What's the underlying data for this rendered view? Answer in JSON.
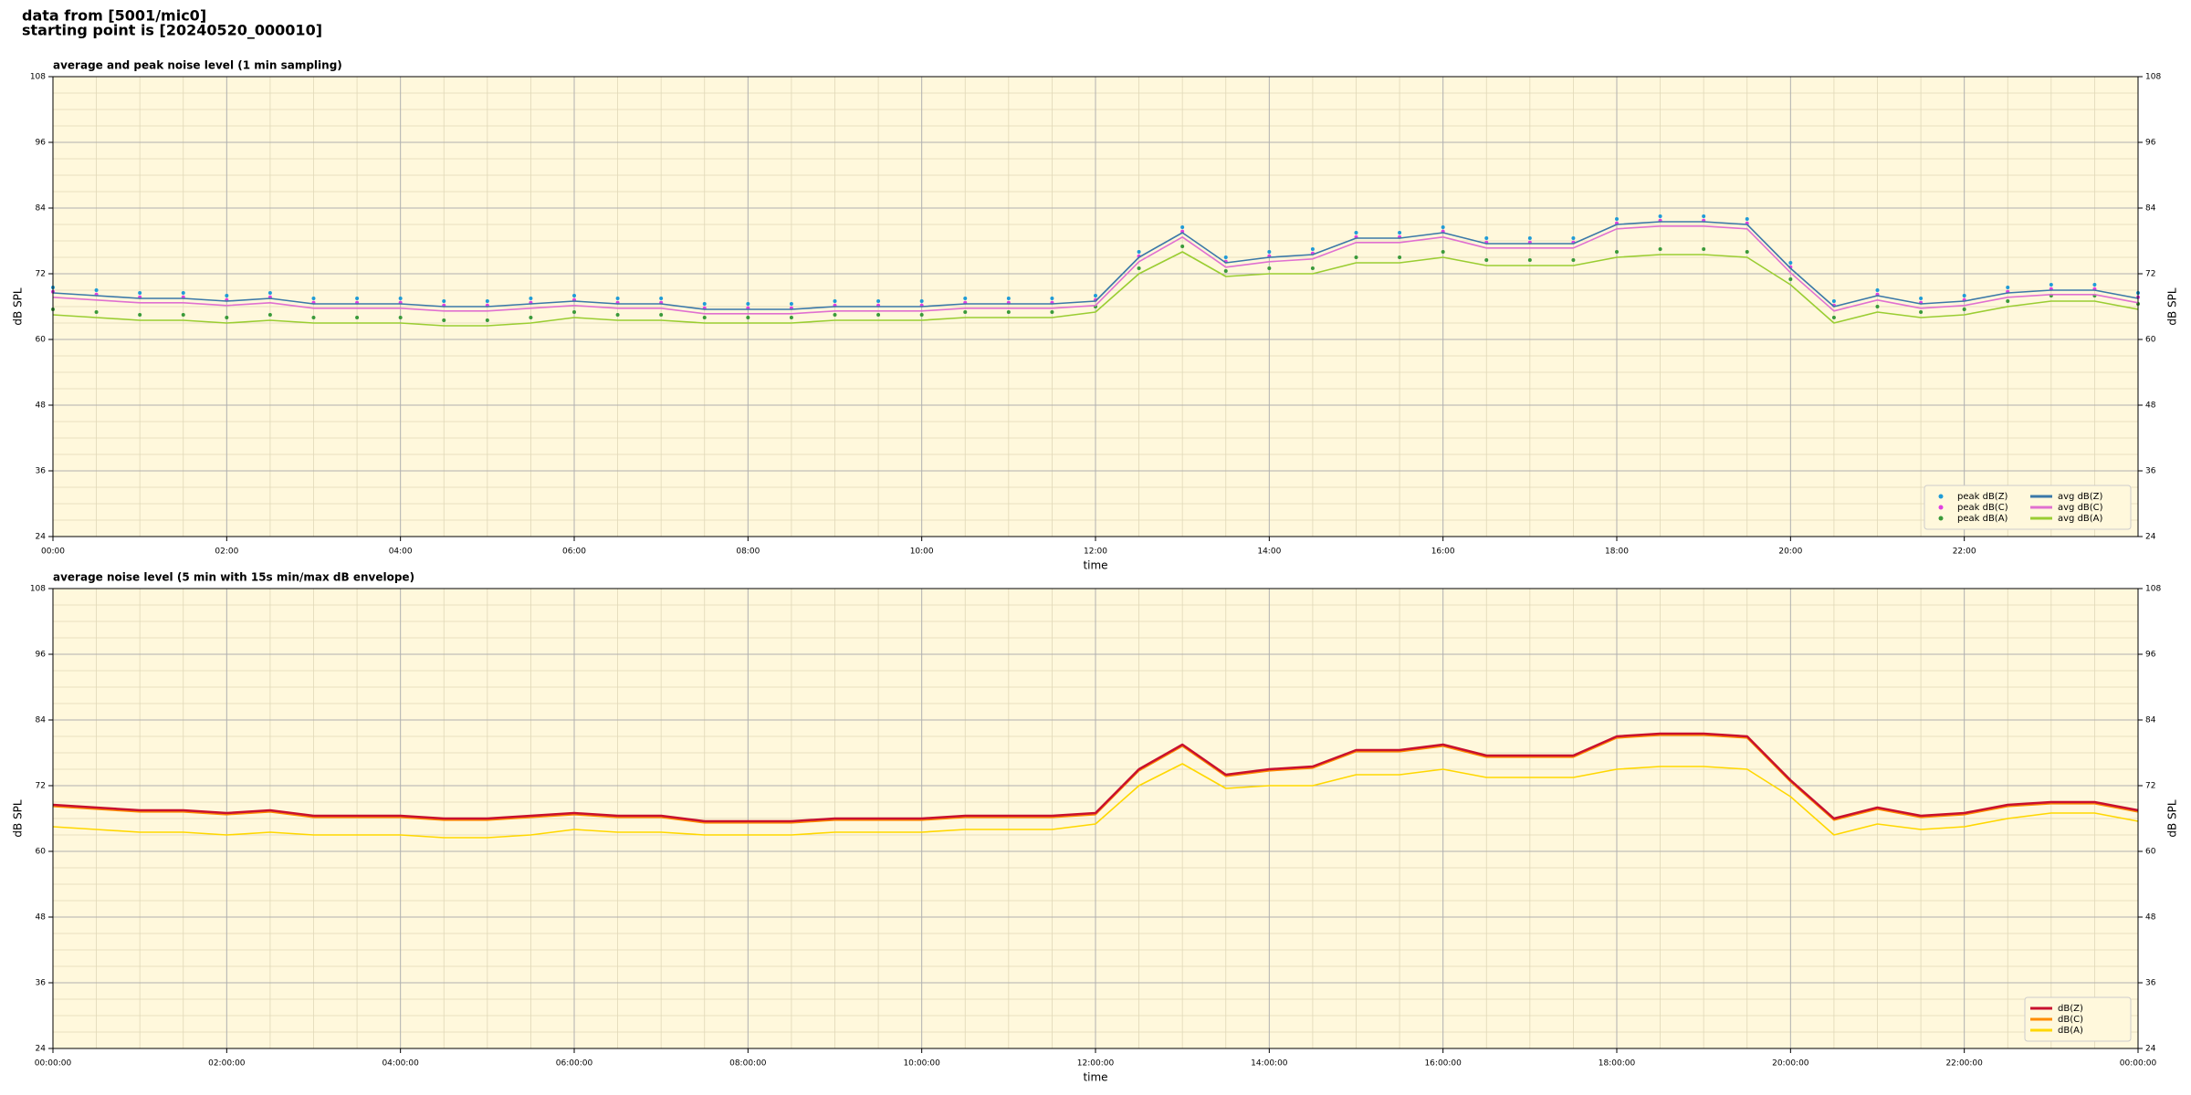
{
  "header": [
    "data from [5001/mic0]",
    "starting point is [20240520_000010]"
  ],
  "chart_data": [
    {
      "type": "line",
      "title": "average and peak noise level (1 min sampling)",
      "xlabel": "time",
      "ylabel": "dB SPL",
      "xlim": [
        0,
        24
      ],
      "ylim": [
        24,
        108
      ],
      "grid": true,
      "legend": "lower right",
      "legend_columns": 2,
      "background": "#fff8dc",
      "xticks": [
        {
          "value": 0,
          "label": "00:00"
        },
        {
          "value": 2,
          "label": "02:00"
        },
        {
          "value": 4,
          "label": "04:00"
        },
        {
          "value": 6,
          "label": "06:00"
        },
        {
          "value": 8,
          "label": "08:00"
        },
        {
          "value": 10,
          "label": "10:00"
        },
        {
          "value": 12,
          "label": "12:00"
        },
        {
          "value": 14,
          "label": "14:00"
        },
        {
          "value": 16,
          "label": "16:00"
        },
        {
          "value": 18,
          "label": "18:00"
        },
        {
          "value": 20,
          "label": "20:00"
        },
        {
          "value": 22,
          "label": "22:00"
        }
      ],
      "yticks": [
        24,
        36,
        48,
        60,
        72,
        84,
        96,
        108
      ],
      "x": [
        0,
        0.5,
        1,
        1.5,
        2,
        2.5,
        3,
        3.5,
        4,
        4.5,
        5,
        5.5,
        6,
        6.5,
        7,
        7.5,
        8,
        8.5,
        9,
        9.5,
        10,
        10.5,
        11,
        11.5,
        12,
        12.5,
        13,
        13.5,
        14,
        14.5,
        15,
        15.5,
        16,
        16.5,
        17,
        17.5,
        18,
        18.5,
        19,
        19.5,
        20,
        20.5,
        21,
        21.5,
        22,
        22.5,
        23,
        23.5,
        24
      ],
      "series": [
        {
          "name": "peak dB(Z)",
          "mark": "point",
          "color": "#1f9bd7",
          "values": [
            69.5,
            69,
            68.5,
            68.5,
            68,
            68.5,
            67.5,
            67.5,
            67.5,
            67,
            67,
            67.5,
            68,
            67.5,
            67.5,
            66.5,
            66.5,
            66.5,
            67,
            67,
            67,
            67.5,
            67.5,
            67.5,
            68,
            76,
            80.5,
            75,
            76,
            76.5,
            79.5,
            79.5,
            80.5,
            78.5,
            78.5,
            78.5,
            82,
            82.5,
            82.5,
            82,
            74,
            67,
            69,
            67.5,
            68,
            69.5,
            70,
            70,
            68.5
          ]
        },
        {
          "name": "peak dB(C)",
          "mark": "point",
          "color": "#e040e0",
          "values": [
            68.7,
            68.2,
            67.7,
            67.7,
            67.2,
            67.7,
            66.7,
            66.7,
            66.7,
            66.2,
            66.2,
            66.7,
            67.2,
            66.7,
            66.7,
            65.7,
            65.7,
            65.7,
            66.2,
            66.2,
            66.2,
            66.7,
            66.7,
            66.7,
            67.2,
            75.2,
            79.7,
            74.2,
            75.2,
            75.7,
            78.7,
            78.7,
            79.7,
            77.7,
            77.7,
            77.7,
            81.2,
            81.7,
            81.7,
            81.2,
            73.2,
            66.2,
            68.2,
            66.7,
            67.2,
            68.7,
            69.2,
            69.2,
            67.7
          ]
        },
        {
          "name": "peak dB(A)",
          "mark": "point",
          "color": "#3a9a3a",
          "values": [
            65.5,
            65,
            64.5,
            64.5,
            64,
            64.5,
            64,
            64,
            64,
            63.5,
            63.5,
            64,
            65,
            64.5,
            64.5,
            64,
            64,
            64,
            64.5,
            64.5,
            64.5,
            65,
            65,
            65,
            66,
            73,
            77,
            72.5,
            73,
            73,
            75,
            75,
            76,
            74.5,
            74.5,
            74.5,
            76,
            76.5,
            76.5,
            76,
            71,
            64,
            66,
            65,
            65.5,
            67,
            68,
            68,
            66.5
          ]
        },
        {
          "name": "avg dB(Z)",
          "mark": "line",
          "color": "#3a78a8",
          "values": [
            68.5,
            68,
            67.5,
            67.5,
            67,
            67.5,
            66.5,
            66.5,
            66.5,
            66,
            66,
            66.5,
            67,
            66.5,
            66.5,
            65.5,
            65.5,
            65.5,
            66,
            66,
            66,
            66.5,
            66.5,
            66.5,
            67,
            75,
            79.5,
            74,
            75,
            75.5,
            78.5,
            78.5,
            79.5,
            77.5,
            77.5,
            77.5,
            81,
            81.5,
            81.5,
            81,
            73,
            66,
            68,
            66.5,
            67,
            68.5,
            69,
            69,
            67.5
          ]
        },
        {
          "name": "avg dB(C)",
          "mark": "line",
          "color": "#e070d0",
          "values": [
            67.7,
            67.2,
            66.7,
            66.7,
            66.2,
            66.7,
            65.7,
            65.7,
            65.7,
            65.2,
            65.2,
            65.7,
            66.2,
            65.7,
            65.7,
            64.7,
            64.7,
            64.7,
            65.2,
            65.2,
            65.2,
            65.7,
            65.7,
            65.7,
            66.2,
            74.2,
            78.7,
            73.2,
            74.2,
            74.7,
            77.7,
            77.7,
            78.7,
            76.7,
            76.7,
            76.7,
            80.2,
            80.7,
            80.7,
            80.2,
            72.2,
            65.2,
            67.2,
            65.7,
            66.2,
            67.7,
            68.2,
            68.2,
            66.7
          ]
        },
        {
          "name": "avg dB(A)",
          "mark": "line",
          "color": "#9acd32",
          "values": [
            64.5,
            64,
            63.5,
            63.5,
            63,
            63.5,
            63,
            63,
            63,
            62.5,
            62.5,
            63,
            64,
            63.5,
            63.5,
            63,
            63,
            63,
            63.5,
            63.5,
            63.5,
            64,
            64,
            64,
            65,
            72,
            76,
            71.5,
            72,
            72,
            74,
            74,
            75,
            73.5,
            73.5,
            73.5,
            75,
            75.5,
            75.5,
            75,
            70,
            63,
            65,
            64,
            64.5,
            66,
            67,
            67,
            65.5
          ]
        }
      ]
    },
    {
      "type": "line",
      "title": "average noise level (5 min with 15s min/max dB envelope)",
      "xlabel": "time",
      "ylabel": "dB SPL",
      "xlim": [
        0,
        24
      ],
      "ylim": [
        24,
        108
      ],
      "grid": true,
      "legend": "lower right",
      "legend_columns": 1,
      "background": "#fff8dc",
      "xticks": [
        {
          "value": 0,
          "label": "00:00:00"
        },
        {
          "value": 2,
          "label": "02:00:00"
        },
        {
          "value": 4,
          "label": "04:00:00"
        },
        {
          "value": 6,
          "label": "06:00:00"
        },
        {
          "value": 8,
          "label": "08:00:00"
        },
        {
          "value": 10,
          "label": "10:00:00"
        },
        {
          "value": 12,
          "label": "12:00:00"
        },
        {
          "value": 14,
          "label": "14:00:00"
        },
        {
          "value": 16,
          "label": "16:00:00"
        },
        {
          "value": 18,
          "label": "18:00:00"
        },
        {
          "value": 20,
          "label": "20:00:00"
        },
        {
          "value": 22,
          "label": "22:00:00"
        },
        {
          "value": 24,
          "label": "00:00:00"
        }
      ],
      "yticks": [
        24,
        36,
        48,
        60,
        72,
        84,
        96,
        108
      ],
      "x": [
        0,
        0.5,
        1,
        1.5,
        2,
        2.5,
        3,
        3.5,
        4,
        4.5,
        5,
        5.5,
        6,
        6.5,
        7,
        7.5,
        8,
        8.5,
        9,
        9.5,
        10,
        10.5,
        11,
        11.5,
        12,
        12.5,
        13,
        13.5,
        14,
        14.5,
        15,
        15.5,
        16,
        16.5,
        17,
        17.5,
        18,
        18.5,
        19,
        19.5,
        20,
        20.5,
        21,
        21.5,
        22,
        22.5,
        23,
        23.5,
        24
      ],
      "series": [
        {
          "name": "dB(Z)",
          "mark": "line",
          "color": "#c8102e",
          "values": [
            68.5,
            68,
            67.5,
            67.5,
            67,
            67.5,
            66.5,
            66.5,
            66.5,
            66,
            66,
            66.5,
            67,
            66.5,
            66.5,
            65.5,
            65.5,
            65.5,
            66,
            66,
            66,
            66.5,
            66.5,
            66.5,
            67,
            75,
            79.5,
            74,
            75,
            75.5,
            78.5,
            78.5,
            79.5,
            77.5,
            77.5,
            77.5,
            81,
            81.5,
            81.5,
            81,
            73,
            66,
            68,
            66.5,
            67,
            68.5,
            69,
            69,
            67.5
          ]
        },
        {
          "name": "dB(C)",
          "mark": "line",
          "color": "#ff8c00",
          "values": [
            68.2,
            67.7,
            67.2,
            67.2,
            66.7,
            67.2,
            66.2,
            66.2,
            66.2,
            65.7,
            65.7,
            66.2,
            66.7,
            66.2,
            66.2,
            65.2,
            65.2,
            65.2,
            65.7,
            65.7,
            65.7,
            66.2,
            66.2,
            66.2,
            66.7,
            74.7,
            79.2,
            73.7,
            74.7,
            75.2,
            78.2,
            78.2,
            79.2,
            77.2,
            77.2,
            77.2,
            80.7,
            81.2,
            81.2,
            80.7,
            72.7,
            65.7,
            67.7,
            66.2,
            66.7,
            68.2,
            68.7,
            68.7,
            67.2
          ]
        },
        {
          "name": "dB(A)",
          "mark": "line",
          "color": "#ffd700",
          "values": [
            64.5,
            64,
            63.5,
            63.5,
            63,
            63.5,
            63,
            63,
            63,
            62.5,
            62.5,
            63,
            64,
            63.5,
            63.5,
            63,
            63,
            63,
            63.5,
            63.5,
            63.5,
            64,
            64,
            64,
            65,
            72,
            76,
            71.5,
            72,
            72,
            74,
            74,
            75,
            73.5,
            73.5,
            73.5,
            75,
            75.5,
            75.5,
            75,
            70,
            63,
            65,
            64,
            64.5,
            66,
            67,
            67,
            65.5
          ]
        }
      ]
    }
  ]
}
